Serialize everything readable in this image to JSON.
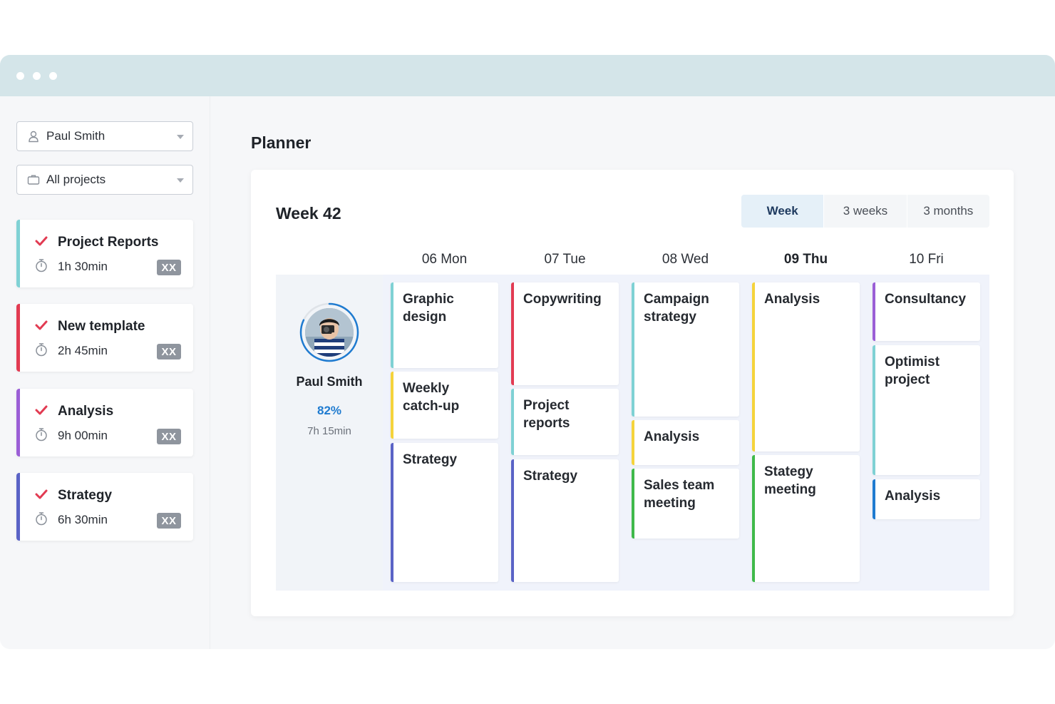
{
  "window": {
    "accent_bar": "#d4e5e9"
  },
  "sidebar": {
    "user_select": {
      "value": "Paul Smith",
      "icon": "person-icon"
    },
    "project_select": {
      "value": "All projects",
      "icon": "briefcase-icon"
    },
    "tasks": [
      {
        "name": "Project Reports",
        "duration": "1h 30min",
        "badge": "XX",
        "color": "#7fd1d4"
      },
      {
        "name": "New template",
        "duration": "2h 45min",
        "badge": "XX",
        "color": "#e23b52"
      },
      {
        "name": "Analysis",
        "duration": "9h 00min",
        "badge": "XX",
        "color": "#9b5fd6"
      },
      {
        "name": "Strategy",
        "duration": "6h 30min",
        "badge": "XX",
        "color": "#5a63c6"
      }
    ]
  },
  "main": {
    "title": "Planner",
    "week_title": "Week 42",
    "view_options": [
      {
        "label": "Week",
        "active": true
      },
      {
        "label": "3 weeks",
        "active": false
      },
      {
        "label": "3 months",
        "active": false
      }
    ],
    "days": [
      {
        "label": "06 Mon",
        "today": false
      },
      {
        "label": "07 Tue",
        "today": false
      },
      {
        "label": "08 Wed",
        "today": false
      },
      {
        "label": "09 Thu",
        "today": true
      },
      {
        "label": "10 Fri",
        "today": false
      }
    ],
    "person": {
      "name": "Paul Smith",
      "utilization": "82%",
      "utilization_value": 0.82,
      "hours": "7h 15min"
    },
    "events": [
      [
        {
          "label": "Graphic design",
          "color": "#7fd1d4"
        },
        {
          "label": "Weekly catch-up",
          "color": "#f5d33b"
        },
        {
          "label": "Strategy",
          "color": "#5a63c6"
        }
      ],
      [
        {
          "label": "Copywriting",
          "color": "#e23b52"
        },
        {
          "label": "Project reports",
          "color": "#7fd1d4"
        },
        {
          "label": "Strategy",
          "color": "#5a63c6"
        }
      ],
      [
        {
          "label": "Campaign strategy",
          "color": "#7fd1d4"
        },
        {
          "label": "Analysis",
          "color": "#f5d33b"
        },
        {
          "label": "Sales team meeting",
          "color": "#3fb94a"
        }
      ],
      [
        {
          "label": "Analysis",
          "color": "#f5d33b"
        },
        {
          "label": "Stategy meeting",
          "color": "#3fb94a"
        }
      ],
      [
        {
          "label": "Consultancy",
          "color": "#9b5fd6"
        },
        {
          "label": "Optimist project",
          "color": "#7fd1d4"
        },
        {
          "label": "Analysis",
          "color": "#1f7bd0"
        }
      ]
    ]
  }
}
